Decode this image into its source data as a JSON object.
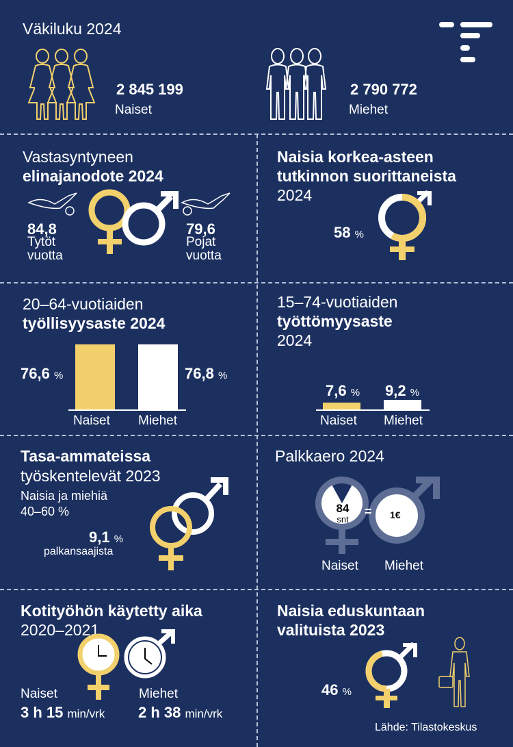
{
  "colors": {
    "background": "#1c3060",
    "gold": "#f2d06b",
    "white": "#ffffff",
    "muted": "#5d6d94"
  },
  "population": {
    "title": "Väkiluku  2024",
    "women_value": "2 845 199",
    "women_label": "Naiset",
    "men_value": "2 790 772",
    "men_label": "Miehet"
  },
  "life_expectancy": {
    "title_line1": "Vastasyntyneen",
    "title_line2": "elinajanodote 2024",
    "girls_value": "84,8",
    "girls_label": "Tytöt",
    "girls_unit": "vuotta",
    "boys_value": "79,6",
    "boys_label": "Pojat",
    "boys_unit": "vuotta"
  },
  "higher_education": {
    "title_line1": "Naisia korkea-asteen",
    "title_line2": "tutkinnon suorittaneista",
    "title_line3": "2024",
    "value": "58",
    "unit": "%",
    "share": 0.58
  },
  "employment": {
    "title_line1": "20–64-vuotiaiden",
    "title_line2": "työllisyysaste 2024",
    "women_value": "76,6",
    "men_value": "76,8",
    "unit": "%",
    "women_label": "Naiset",
    "men_label": "Miehet"
  },
  "unemployment": {
    "title_line1": "15–74-vuotiaiden",
    "title_line2": "työttömyysaste",
    "title_line3": "2024",
    "women_value": "7,6",
    "men_value": "9,2",
    "unit": "%",
    "women_label": "Naiset",
    "men_label": "Miehet"
  },
  "equal_occupations": {
    "title_line1": "Tasa-ammateissa",
    "title_line2": "työskentelevät 2023",
    "sub_line1": "Naisia ja miehiä",
    "sub_line2": "40–60 %",
    "value": "9,1",
    "unit": "%",
    "value_label": "palkansaajista"
  },
  "pay_gap": {
    "title": "Palkkaero 2024",
    "women_value": "84",
    "women_unit": "snt",
    "equals": "=",
    "men_value": "1€",
    "women_label": "Naiset",
    "men_label": "Miehet",
    "share": 0.84
  },
  "housework": {
    "title_line1": "Kotityöhön käytetty aika",
    "title_line2": "2020–2021",
    "women_label": "Naiset",
    "women_hours": "3 h 15",
    "women_unit": "min/vrk",
    "men_label": "Miehet",
    "men_hours": "2 h 38",
    "men_unit": "min/vrk"
  },
  "parliament": {
    "title_line1": "Naisia eduskuntaan",
    "title_line2": "valituista  2023",
    "value": "46",
    "unit": "%",
    "share": 0.46
  },
  "source": "Lähde: Tilastokeskus"
}
